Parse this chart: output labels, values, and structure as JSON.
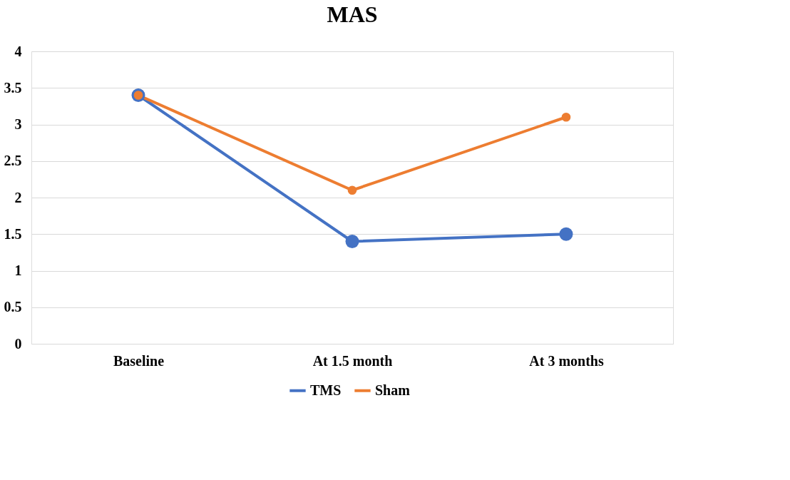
{
  "chart_data": {
    "type": "line",
    "title": "MAS",
    "categories": [
      "Baseline",
      "At 1.5 month",
      "At 3 months"
    ],
    "series": [
      {
        "name": "TMS",
        "color": "#4472c4",
        "values": [
          3.4,
          1.4,
          1.5
        ]
      },
      {
        "name": "Sham",
        "color": "#ed7d31",
        "values": [
          3.4,
          2.1,
          3.1
        ]
      }
    ],
    "ylim": [
      0,
      4
    ],
    "yticks": [
      0,
      0.5,
      1,
      1.5,
      2,
      2.5,
      3,
      3.5,
      4
    ],
    "grid": "y",
    "legend": "bottom",
    "marker": "circle",
    "line_style": "solid"
  }
}
